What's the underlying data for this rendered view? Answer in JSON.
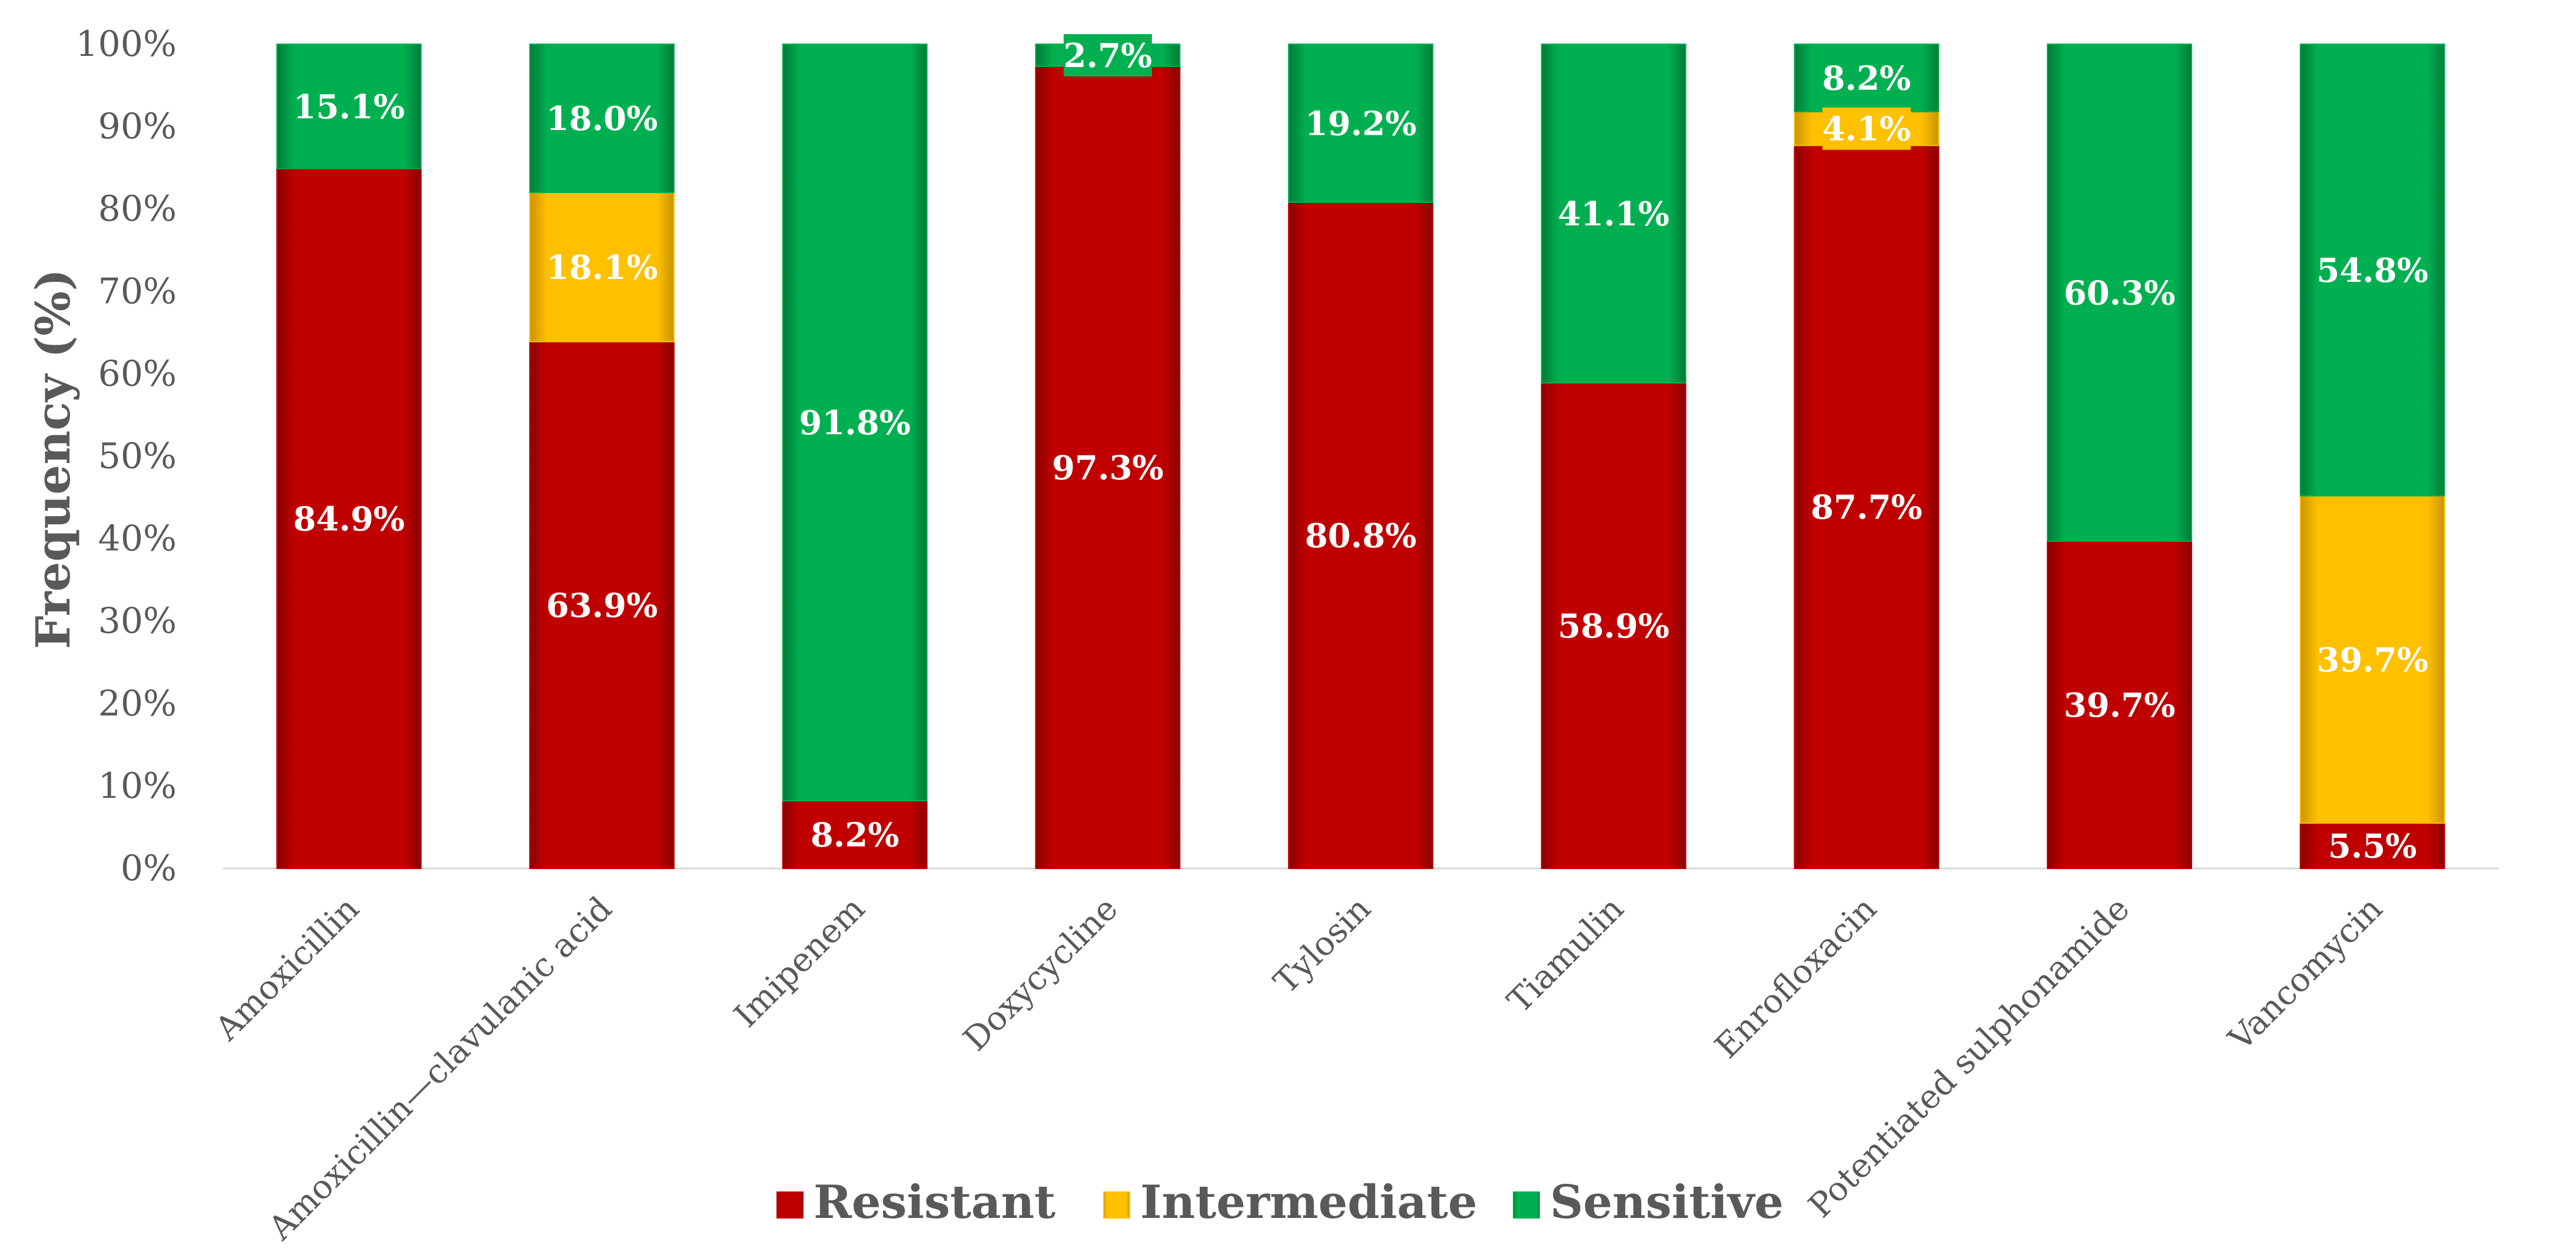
{
  "chart_data": {
    "type": "bar",
    "stacked": true,
    "title": "",
    "xlabel": "",
    "ylabel": "Frequency (%)",
    "ylim": [
      0,
      100
    ],
    "yticks": [
      0,
      10,
      20,
      30,
      40,
      50,
      60,
      70,
      80,
      90,
      100
    ],
    "ytick_labels": [
      "0%",
      "10%",
      "20%",
      "30%",
      "40%",
      "50%",
      "60%",
      "70%",
      "80%",
      "90%",
      "100%"
    ],
    "grid": false,
    "legend_position": "bottom",
    "categories": [
      "Amoxicillin",
      "Amoxicillin—clavulanic acid",
      "Imipenem",
      "Doxycycline",
      "Tylosin",
      "Tiamulin",
      "Enrofloxacin",
      "Potentiated sulphonamide",
      "Vancomycin"
    ],
    "series": [
      {
        "name": "Resistant",
        "color": "#C00000",
        "values": [
          84.9,
          63.9,
          8.2,
          97.3,
          80.8,
          58.9,
          87.7,
          39.7,
          5.5
        ],
        "labels": [
          "84.9%",
          "63.9%",
          "8.2%",
          "97.3%",
          "80.8%",
          "58.9%",
          "87.7%",
          "39.7%",
          "5.5%"
        ]
      },
      {
        "name": "Intermediate",
        "color": "#FFC000",
        "values": [
          0,
          18.1,
          0,
          0,
          0,
          0,
          4.1,
          0,
          39.7
        ],
        "labels": [
          "",
          "18.1%",
          "",
          "",
          "",
          "",
          "4.1%",
          "",
          "39.7%"
        ]
      },
      {
        "name": "Sensitive",
        "color": "#00B050",
        "values": [
          15.1,
          18.0,
          91.8,
          2.7,
          19.2,
          41.1,
          8.2,
          60.3,
          54.8
        ],
        "labels": [
          "15.1%",
          "18.0%",
          "91.8%",
          "2.7%",
          "19.2%",
          "41.1%",
          "8.2%",
          "60.3%",
          "54.8%"
        ]
      }
    ]
  }
}
